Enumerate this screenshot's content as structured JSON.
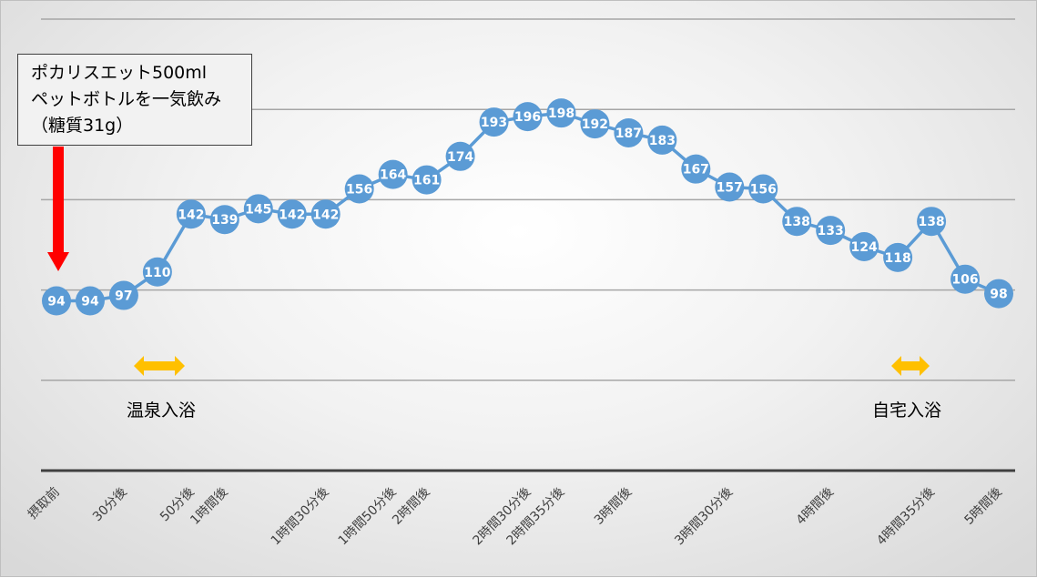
{
  "colors": {
    "series": "#5b9bd5",
    "intake_arrow": "#ff0000",
    "bath_arrow": "#ffc000",
    "gridline": "#a6a6a6",
    "axis": "#404040"
  },
  "annotation": {
    "lines": [
      "ポカリスエット500ml",
      "ペットボトルを一気飲み",
      "（糖質31g）"
    ]
  },
  "events": [
    {
      "label": "温泉入浴"
    },
    {
      "label": "自宅入浴"
    }
  ],
  "chart_data": {
    "type": "line",
    "ylim": [
      0,
      250
    ],
    "grid": true,
    "gridline_values": [
      50,
      100,
      150,
      200,
      250
    ],
    "series": [
      {
        "values": [
          94,
          94,
          97,
          110,
          142,
          139,
          145,
          142,
          142,
          156,
          164,
          161,
          174,
          193,
          196,
          198,
          192,
          187,
          183,
          167,
          157,
          156,
          138,
          133,
          124,
          118,
          138,
          106,
          98
        ]
      }
    ],
    "x_tick_labels": [
      {
        "point": 0,
        "text": "摂取前"
      },
      {
        "point": 2,
        "text": "30分後"
      },
      {
        "point": 4,
        "text": "50分後"
      },
      {
        "point": 5,
        "text": "1時間後"
      },
      {
        "point": 8,
        "text": "1時間30分後"
      },
      {
        "point": 10,
        "text": "1時間50分後"
      },
      {
        "point": 11,
        "text": "2時間後"
      },
      {
        "point": 14,
        "text": "2時間30分後"
      },
      {
        "point": 15,
        "text": "2時間35分後"
      },
      {
        "point": 17,
        "text": "3時間後"
      },
      {
        "point": 20,
        "text": "3時間30分後"
      },
      {
        "point": 23,
        "text": "4時間後"
      },
      {
        "point": 26,
        "text": "4時間35分後"
      },
      {
        "point": 28,
        "text": "5時間後"
      }
    ],
    "data_labels": true,
    "legend": "none"
  }
}
